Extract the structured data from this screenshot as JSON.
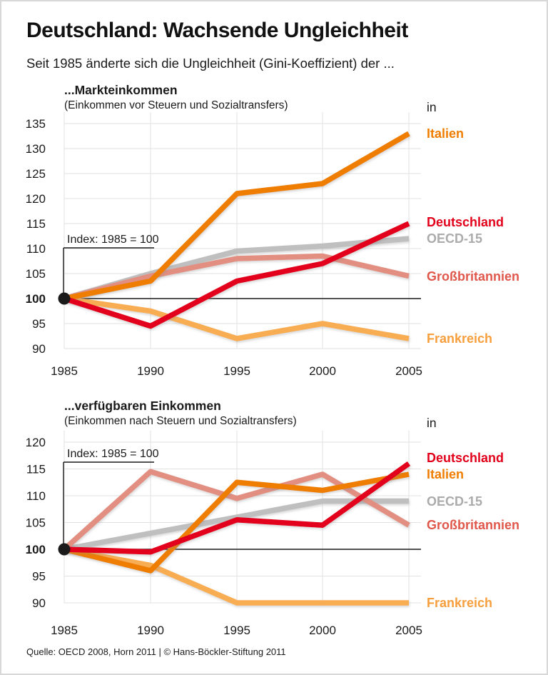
{
  "page": {
    "title": "Deutschland: Wachsende Ungleichheit",
    "subtitle": "Seit 1985 änderte sich die Ungleichheit (Gini-Koeffizient) der ...",
    "source": "Quelle: OECD 2008, Horn 2011 | © Hans-Böckler-Stiftung 2011"
  },
  "colors": {
    "axis": "#1a1a1a",
    "grid": "#e2e2e2",
    "base_dot": "#1a1a1a"
  },
  "chart_data": [
    {
      "type": "line",
      "title": "...Markteinkommen",
      "subtitle": "(Einkommen vor Steuern und Sozialtransfers)",
      "legend_intro": "in",
      "annotation": "Index: 1985 = 100",
      "x": [
        1985,
        1990,
        1995,
        2000,
        2005
      ],
      "xlabel": "",
      "ylabel": "",
      "ylim": [
        88,
        137
      ],
      "yticks": [
        90,
        95,
        100,
        105,
        110,
        115,
        120,
        125,
        130,
        135
      ],
      "baseline": 100,
      "grid": true,
      "legend_position": "right",
      "series": [
        {
          "name": "OECD-15",
          "color": "#bfbfbf",
          "label_color": "#ababab",
          "values": [
            100,
            105,
            109.5,
            110.5,
            112
          ]
        },
        {
          "name": "Großbritannien",
          "color": "#e28e80",
          "label_color": "#e0574b",
          "values": [
            100,
            104.5,
            108,
            108.5,
            104.5
          ]
        },
        {
          "name": "Frankreich",
          "color": "#f9ad52",
          "label_color": "#f79f3d",
          "values": [
            100,
            97.5,
            92,
            95,
            92
          ]
        },
        {
          "name": "Italien",
          "color": "#ef7d00",
          "label_color": "#ef7d00",
          "values": [
            100,
            103.5,
            121,
            123,
            133
          ]
        },
        {
          "name": "Deutschland",
          "color": "#e2001a",
          "label_color": "#e2001a",
          "values": [
            100,
            94.5,
            103.5,
            107,
            115
          ]
        }
      ]
    },
    {
      "type": "line",
      "title": "...verfügbaren Einkommen",
      "subtitle": "(Einkommen nach Steuern und Sozialtransfers)",
      "legend_intro": "in",
      "annotation": "Index: 1985 = 100",
      "x": [
        1985,
        1990,
        1995,
        2000,
        2005
      ],
      "xlabel": "",
      "ylabel": "",
      "ylim": [
        87,
        121
      ],
      "yticks": [
        90,
        95,
        100,
        105,
        110,
        115,
        120
      ],
      "baseline": 100,
      "grid": true,
      "legend_position": "right",
      "series": [
        {
          "name": "OECD-15",
          "color": "#bfbfbf",
          "label_color": "#ababab",
          "values": [
            100,
            103,
            106,
            109,
            109
          ]
        },
        {
          "name": "Großbritannien",
          "color": "#e28e80",
          "label_color": "#e0574b",
          "values": [
            100,
            114.5,
            109.5,
            114,
            104.5
          ]
        },
        {
          "name": "Frankreich",
          "color": "#f9ad52",
          "label_color": "#f79f3d",
          "values": [
            100,
            97,
            90,
            90,
            90
          ]
        },
        {
          "name": "Italien",
          "color": "#ef7d00",
          "label_color": "#ef7d00",
          "values": [
            100,
            96,
            112.5,
            111,
            114
          ]
        },
        {
          "name": "Deutschland",
          "color": "#e2001a",
          "label_color": "#e2001a",
          "values": [
            100,
            99.5,
            105.5,
            104.5,
            116
          ]
        }
      ]
    }
  ]
}
